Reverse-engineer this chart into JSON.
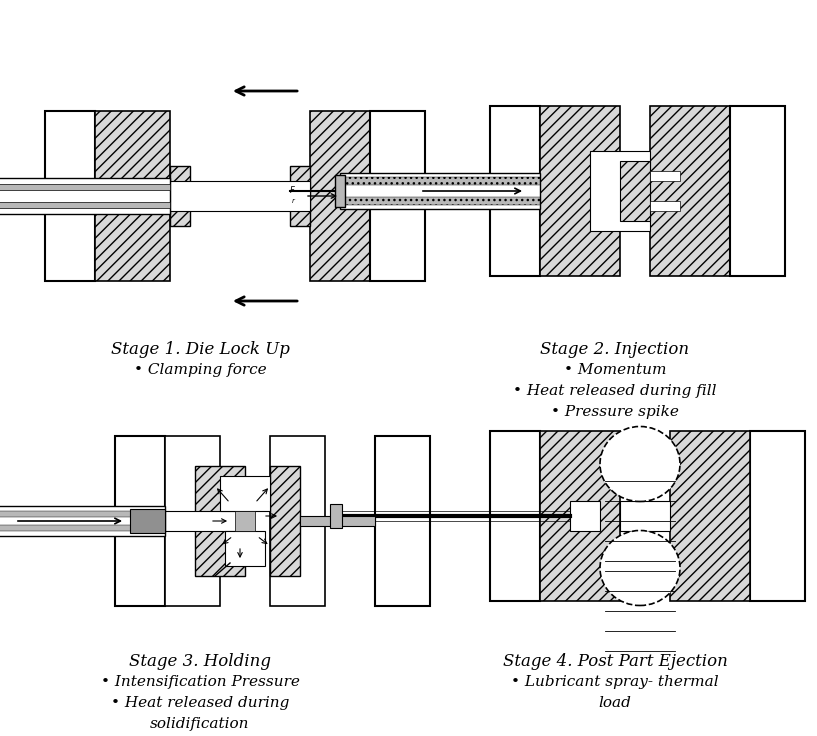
{
  "figure_width": 8.17,
  "figure_height": 7.36,
  "bg_color": "#ffffff",
  "line_color": "#000000",
  "gray_light": "#d8d8d8",
  "gray_mid": "#b8b8b8",
  "gray_dark": "#909090",
  "hatch_pattern": "///",
  "stage1": {
    "title": "Stage 1. Die Lock Up",
    "bullet1": "• Clamping force"
  },
  "stage2": {
    "title": "Stage 2. Injection",
    "bullet1": "• Momentum",
    "bullet2": "• Heat released during fill",
    "bullet3": "• Pressure spike"
  },
  "stage3": {
    "title": "Stage 3. Holding",
    "bullet1": "• Intensification Pressure",
    "bullet2": "• Heat released during",
    "bullet3": "solidification"
  },
  "stage4": {
    "title": "Stage 4. Post Part Ejection",
    "bullet1": "• Lubricant spray- thermal",
    "bullet2": "load"
  }
}
